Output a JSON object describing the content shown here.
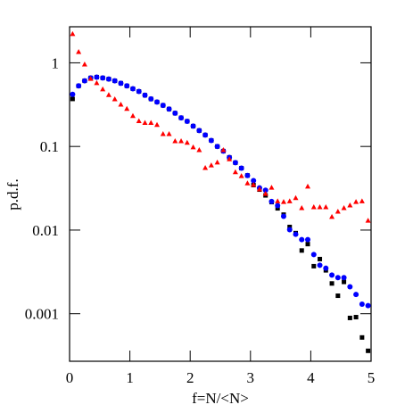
{
  "chart_data": {
    "type": "scatter",
    "xlabel": "f=N/<N>",
    "ylabel": "p.d.f.",
    "log_y": true,
    "xlim": [
      0,
      5
    ],
    "ylim": [
      0.00027,
      2.7
    ],
    "xticks": [
      0,
      1,
      2,
      3,
      4,
      5
    ],
    "yticks": [
      0.001,
      0.01,
      0.1,
      1
    ],
    "x": [
      0.05,
      0.15,
      0.25,
      0.35,
      0.45,
      0.55,
      0.65,
      0.75,
      0.85,
      0.95,
      1.05,
      1.15,
      1.25,
      1.35,
      1.45,
      1.55,
      1.65,
      1.75,
      1.85,
      1.95,
      2.05,
      2.15,
      2.25,
      2.35,
      2.45,
      2.55,
      2.65,
      2.75,
      2.85,
      2.95,
      3.05,
      3.15,
      3.25,
      3.35,
      3.45,
      3.55,
      3.65,
      3.75,
      3.85,
      3.95,
      4.05,
      4.15,
      4.25,
      4.35,
      4.45,
      4.55,
      4.65,
      4.75,
      4.85,
      4.95
    ],
    "series": [
      {
        "color": "#000000",
        "marker": "square",
        "values": [
          0.37,
          0.53,
          0.61,
          0.66,
          0.675,
          0.66,
          0.64,
          0.61,
          0.57,
          0.53,
          0.49,
          0.455,
          0.41,
          0.37,
          0.34,
          0.31,
          0.28,
          0.25,
          0.22,
          0.2,
          0.175,
          0.155,
          0.137,
          0.118,
          0.1,
          0.088,
          0.074,
          0.064,
          0.055,
          0.045,
          0.0345,
          0.0305,
          0.026,
          0.0216,
          0.0182,
          0.0153,
          0.0109,
          0.0092,
          0.0057,
          0.0068,
          0.0037,
          0.0045,
          0.0033,
          0.0023,
          0.00164,
          0.0024,
          0.00089,
          0.00091,
          0.00052,
          0.00036
        ]
      },
      {
        "color": "#0000ff",
        "marker": "circle",
        "values": [
          0.42,
          0.53,
          0.61,
          0.66,
          0.675,
          0.66,
          0.64,
          0.61,
          0.57,
          0.53,
          0.49,
          0.455,
          0.41,
          0.37,
          0.34,
          0.31,
          0.28,
          0.25,
          0.22,
          0.2,
          0.175,
          0.155,
          0.137,
          0.118,
          0.1,
          0.088,
          0.074,
          0.064,
          0.055,
          0.045,
          0.039,
          0.032,
          0.03,
          0.022,
          0.0196,
          0.0146,
          0.0101,
          0.0089,
          0.0077,
          0.0077,
          0.0051,
          0.0038,
          0.0035,
          0.0029,
          0.0027,
          0.0027,
          0.0021,
          0.0017,
          0.0013,
          0.00125
        ]
      },
      {
        "color": "#ff0000",
        "marker": "triangle",
        "values": [
          2.2,
          1.34,
          0.95,
          0.64,
          0.57,
          0.48,
          0.41,
          0.365,
          0.315,
          0.28,
          0.23,
          0.2,
          0.19,
          0.19,
          0.18,
          0.14,
          0.14,
          0.115,
          0.115,
          0.11,
          0.097,
          0.09,
          0.055,
          0.059,
          0.064,
          0.09,
          0.07,
          0.049,
          0.044,
          0.036,
          0.0345,
          0.0305,
          0.027,
          0.032,
          0.022,
          0.0216,
          0.022,
          0.024,
          0.0182,
          0.033,
          0.0187,
          0.0187,
          0.0187,
          0.0143,
          0.0165,
          0.0182,
          0.0196,
          0.0216,
          0.022,
          0.0129
        ]
      }
    ]
  }
}
